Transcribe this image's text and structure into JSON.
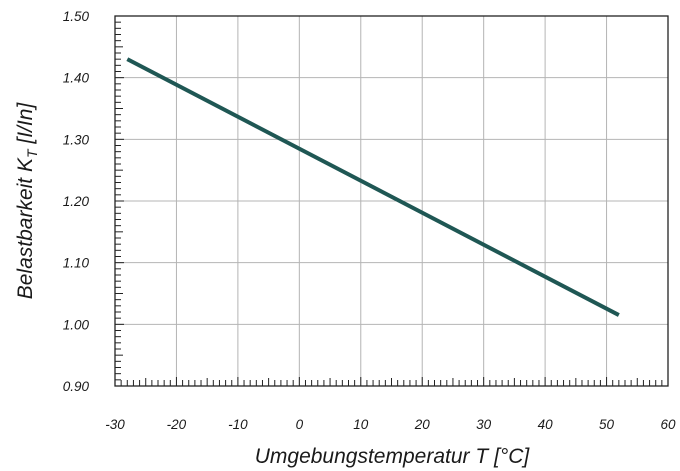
{
  "chart_data": {
    "type": "line",
    "title": "",
    "xlabel": "Umgebungstemperatur T [°C]",
    "ylabel_main": "Belastbarkeit K",
    "ylabel_sub": "T",
    "ylabel_unit": " [I/In]",
    "xlim": [
      -30,
      60
    ],
    "ylim": [
      0.9,
      1.5
    ],
    "x_ticks": [
      -30,
      -20,
      -10,
      0,
      10,
      20,
      30,
      40,
      50,
      60
    ],
    "x_tick_labels": [
      "-30",
      "-20",
      "-10",
      "0",
      "10",
      "20",
      "30",
      "40",
      "50",
      "60"
    ],
    "y_ticks": [
      0.9,
      1.0,
      1.1,
      1.2,
      1.3,
      1.4,
      1.5
    ],
    "y_tick_labels": [
      "0.90",
      "1.00",
      "1.10",
      "1.20",
      "1.30",
      "1.40",
      "1.50"
    ],
    "grid": true,
    "series": [
      {
        "x": [
          -28,
          52
        ],
        "y": [
          1.43,
          1.015
        ]
      }
    ],
    "colors": {
      "line": "#1f5754",
      "grid": "#b4b4b4",
      "axis": "#222222"
    }
  }
}
